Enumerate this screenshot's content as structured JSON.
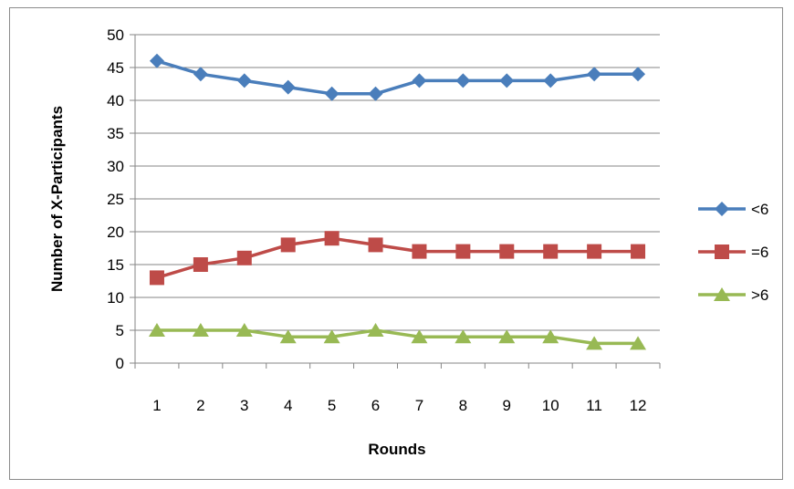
{
  "chart_data": {
    "type": "line",
    "xlabel": "Rounds",
    "ylabel": "Number of X-Participants",
    "categories": [
      "1",
      "2",
      "3",
      "4",
      "5",
      "6",
      "7",
      "8",
      "9",
      "10",
      "11",
      "12"
    ],
    "ylim": [
      0,
      50
    ],
    "yticks": [
      0,
      5,
      10,
      15,
      20,
      25,
      30,
      35,
      40,
      45,
      50
    ],
    "grid": "horizontal",
    "legend_position": "right",
    "series": [
      {
        "name": "<6",
        "color": "#4a7ebb",
        "marker": "diamond",
        "values": [
          46,
          44,
          43,
          42,
          41,
          41,
          43,
          43,
          43,
          43,
          44,
          44
        ]
      },
      {
        "name": "=6",
        "color": "#be4b48",
        "marker": "square",
        "values": [
          13,
          15,
          16,
          18,
          19,
          18,
          17,
          17,
          17,
          17,
          17,
          17
        ]
      },
      {
        "name": ">6",
        "color": "#98b954",
        "marker": "triangle",
        "values": [
          5,
          5,
          5,
          4,
          4,
          5,
          4,
          4,
          4,
          4,
          3,
          3
        ]
      }
    ]
  }
}
